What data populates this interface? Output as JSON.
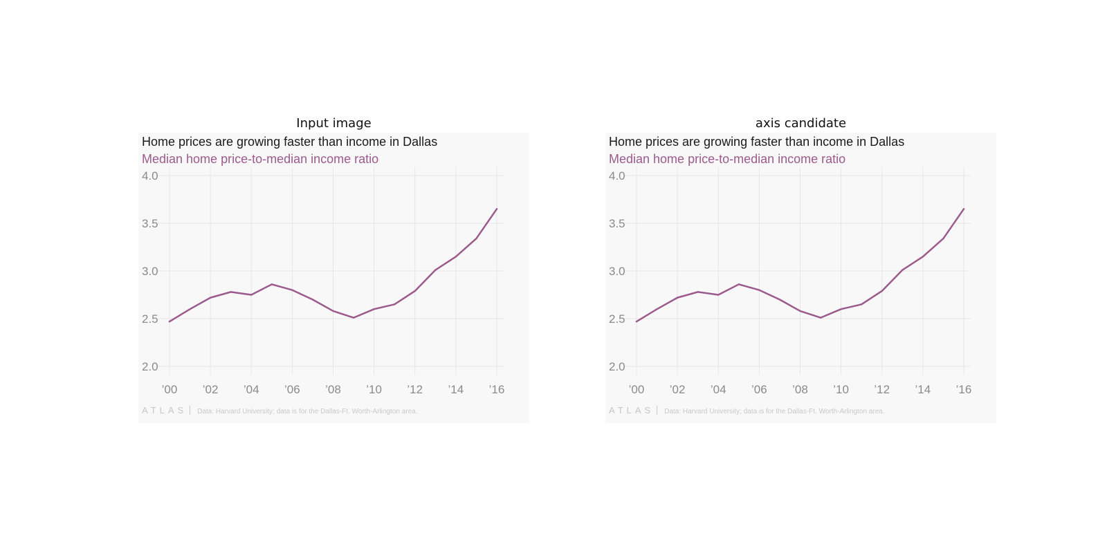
{
  "panels": [
    {
      "label": "Input image"
    },
    {
      "label": "axis candidate"
    }
  ],
  "colors": {
    "line": "#9c5a8c",
    "grid": "#e6e6e6",
    "tick_text": "#8a8a8a",
    "card_background": "#f8f8f8"
  },
  "chart_data": [
    {
      "type": "line",
      "title": "Home prices are growing faster than income in Dallas",
      "subtitle": "Median home price-to-median income ratio",
      "x": [
        2000,
        2001,
        2002,
        2003,
        2004,
        2005,
        2006,
        2007,
        2008,
        2009,
        2010,
        2011,
        2012,
        2013,
        2014,
        2015,
        2016
      ],
      "series": [
        {
          "values": [
            2.47,
            2.6,
            2.72,
            2.78,
            2.75,
            2.86,
            2.8,
            2.7,
            2.58,
            2.51,
            2.6,
            2.65,
            2.79,
            3.01,
            3.15,
            3.34,
            3.65
          ]
        }
      ],
      "x_ticks": [
        2000,
        2002,
        2004,
        2006,
        2008,
        2010,
        2012,
        2014,
        2016
      ],
      "x_tick_labels": [
        "’00",
        "’02",
        "’04",
        "’06",
        "’08",
        "’10",
        "’12",
        "’14",
        "’16"
      ],
      "y_ticks": [
        2.0,
        2.5,
        3.0,
        3.5,
        4.0
      ],
      "y_tick_labels": [
        "2.0",
        "2.5",
        "3.0",
        "3.5",
        "4.0"
      ],
      "xlim": [
        2000,
        2016
      ],
      "ylim": [
        2.0,
        4.0
      ],
      "grid": true,
      "logo": "ATLAS",
      "source": "Data: Harvard University; data is for the Dallas-Ft. Worth-Arlington area."
    },
    {
      "type": "line",
      "title": "Home prices are growing faster than income in Dallas",
      "subtitle": "Median home price-to-median income ratio",
      "x": [
        2000,
        2001,
        2002,
        2003,
        2004,
        2005,
        2006,
        2007,
        2008,
        2009,
        2010,
        2011,
        2012,
        2013,
        2014,
        2015,
        2016
      ],
      "series": [
        {
          "values": [
            2.47,
            2.6,
            2.72,
            2.78,
            2.75,
            2.86,
            2.8,
            2.7,
            2.58,
            2.51,
            2.6,
            2.65,
            2.79,
            3.01,
            3.15,
            3.34,
            3.65
          ]
        }
      ],
      "x_ticks": [
        2000,
        2002,
        2004,
        2006,
        2008,
        2010,
        2012,
        2014,
        2016
      ],
      "x_tick_labels": [
        "’00",
        "’02",
        "’04",
        "’06",
        "’08",
        "’10",
        "’12",
        "’14",
        "’16"
      ],
      "y_ticks": [
        2.0,
        2.5,
        3.0,
        3.5,
        4.0
      ],
      "y_tick_labels": [
        "2.0",
        "2.5",
        "3.0",
        "3.5",
        "4.0"
      ],
      "xlim": [
        2000,
        2016
      ],
      "ylim": [
        2.0,
        4.0
      ],
      "grid": true,
      "logo": "ATLAS",
      "source": "Data: Harvard University; data is for the Dallas-Ft. Worth-Arlington area."
    }
  ]
}
